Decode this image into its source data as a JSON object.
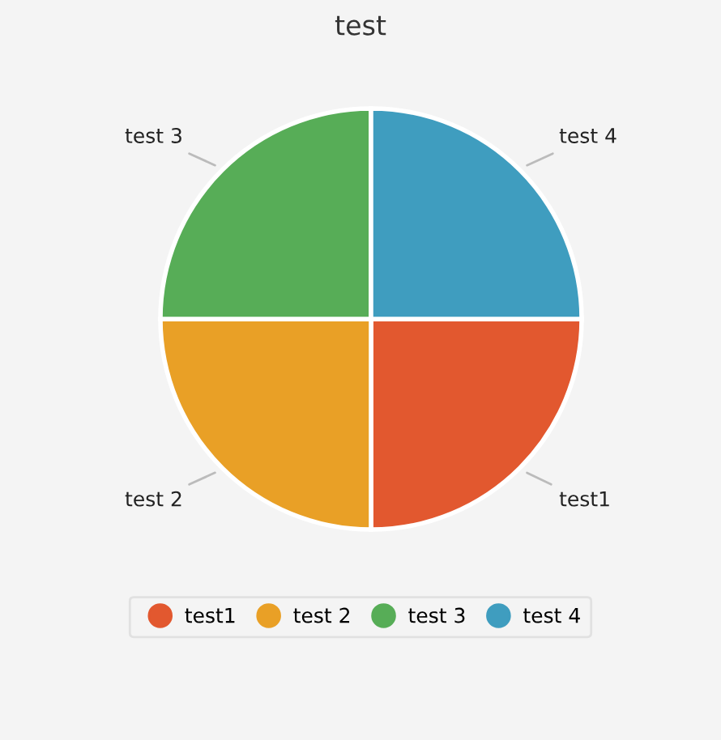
{
  "chart_data": {
    "type": "pie",
    "title": "test",
    "categories": [
      "test1",
      "test 2",
      "test 3",
      "test 4"
    ],
    "values": [
      25,
      25,
      25,
      25
    ],
    "colors": [
      "#e2582f",
      "#e9a026",
      "#57ad57",
      "#3f9dbf"
    ],
    "legend": "bottom"
  }
}
